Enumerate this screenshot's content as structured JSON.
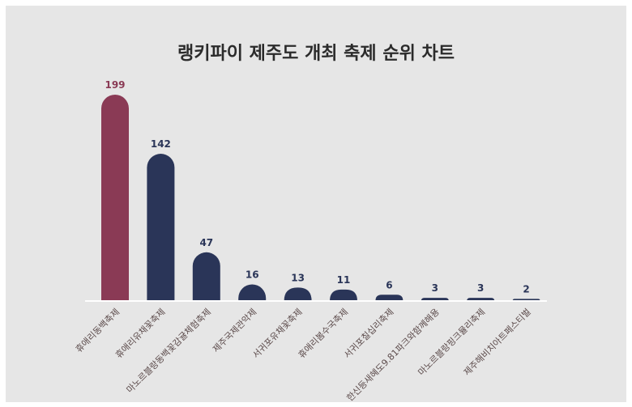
{
  "chart_data": {
    "type": "bar",
    "title": "랭키파이 제주도 개최 축제 순위 차트",
    "categories": [
      "휴애리동백축제",
      "휴애리유채꽃축제",
      "마노르블랑동백꽃감귤체험축제",
      "제주국제관악제",
      "서귀포유채꽃축제",
      "휴애리봄수국축제",
      "서귀포칠십리축제",
      "한신등새혜도9.81파크와함께해용",
      "마노르블랑핑크뮬리축제",
      "제주해비치아트페스티벌"
    ],
    "values": [
      199,
      142,
      47,
      16,
      13,
      11,
      6,
      3,
      3,
      2
    ],
    "ylim": [
      0,
      199
    ],
    "grid": false,
    "colors": {
      "highlight": "#8a3a55",
      "bar": "#2a3558",
      "background": "#e6e6e6",
      "baseline": "#ffffff"
    }
  }
}
